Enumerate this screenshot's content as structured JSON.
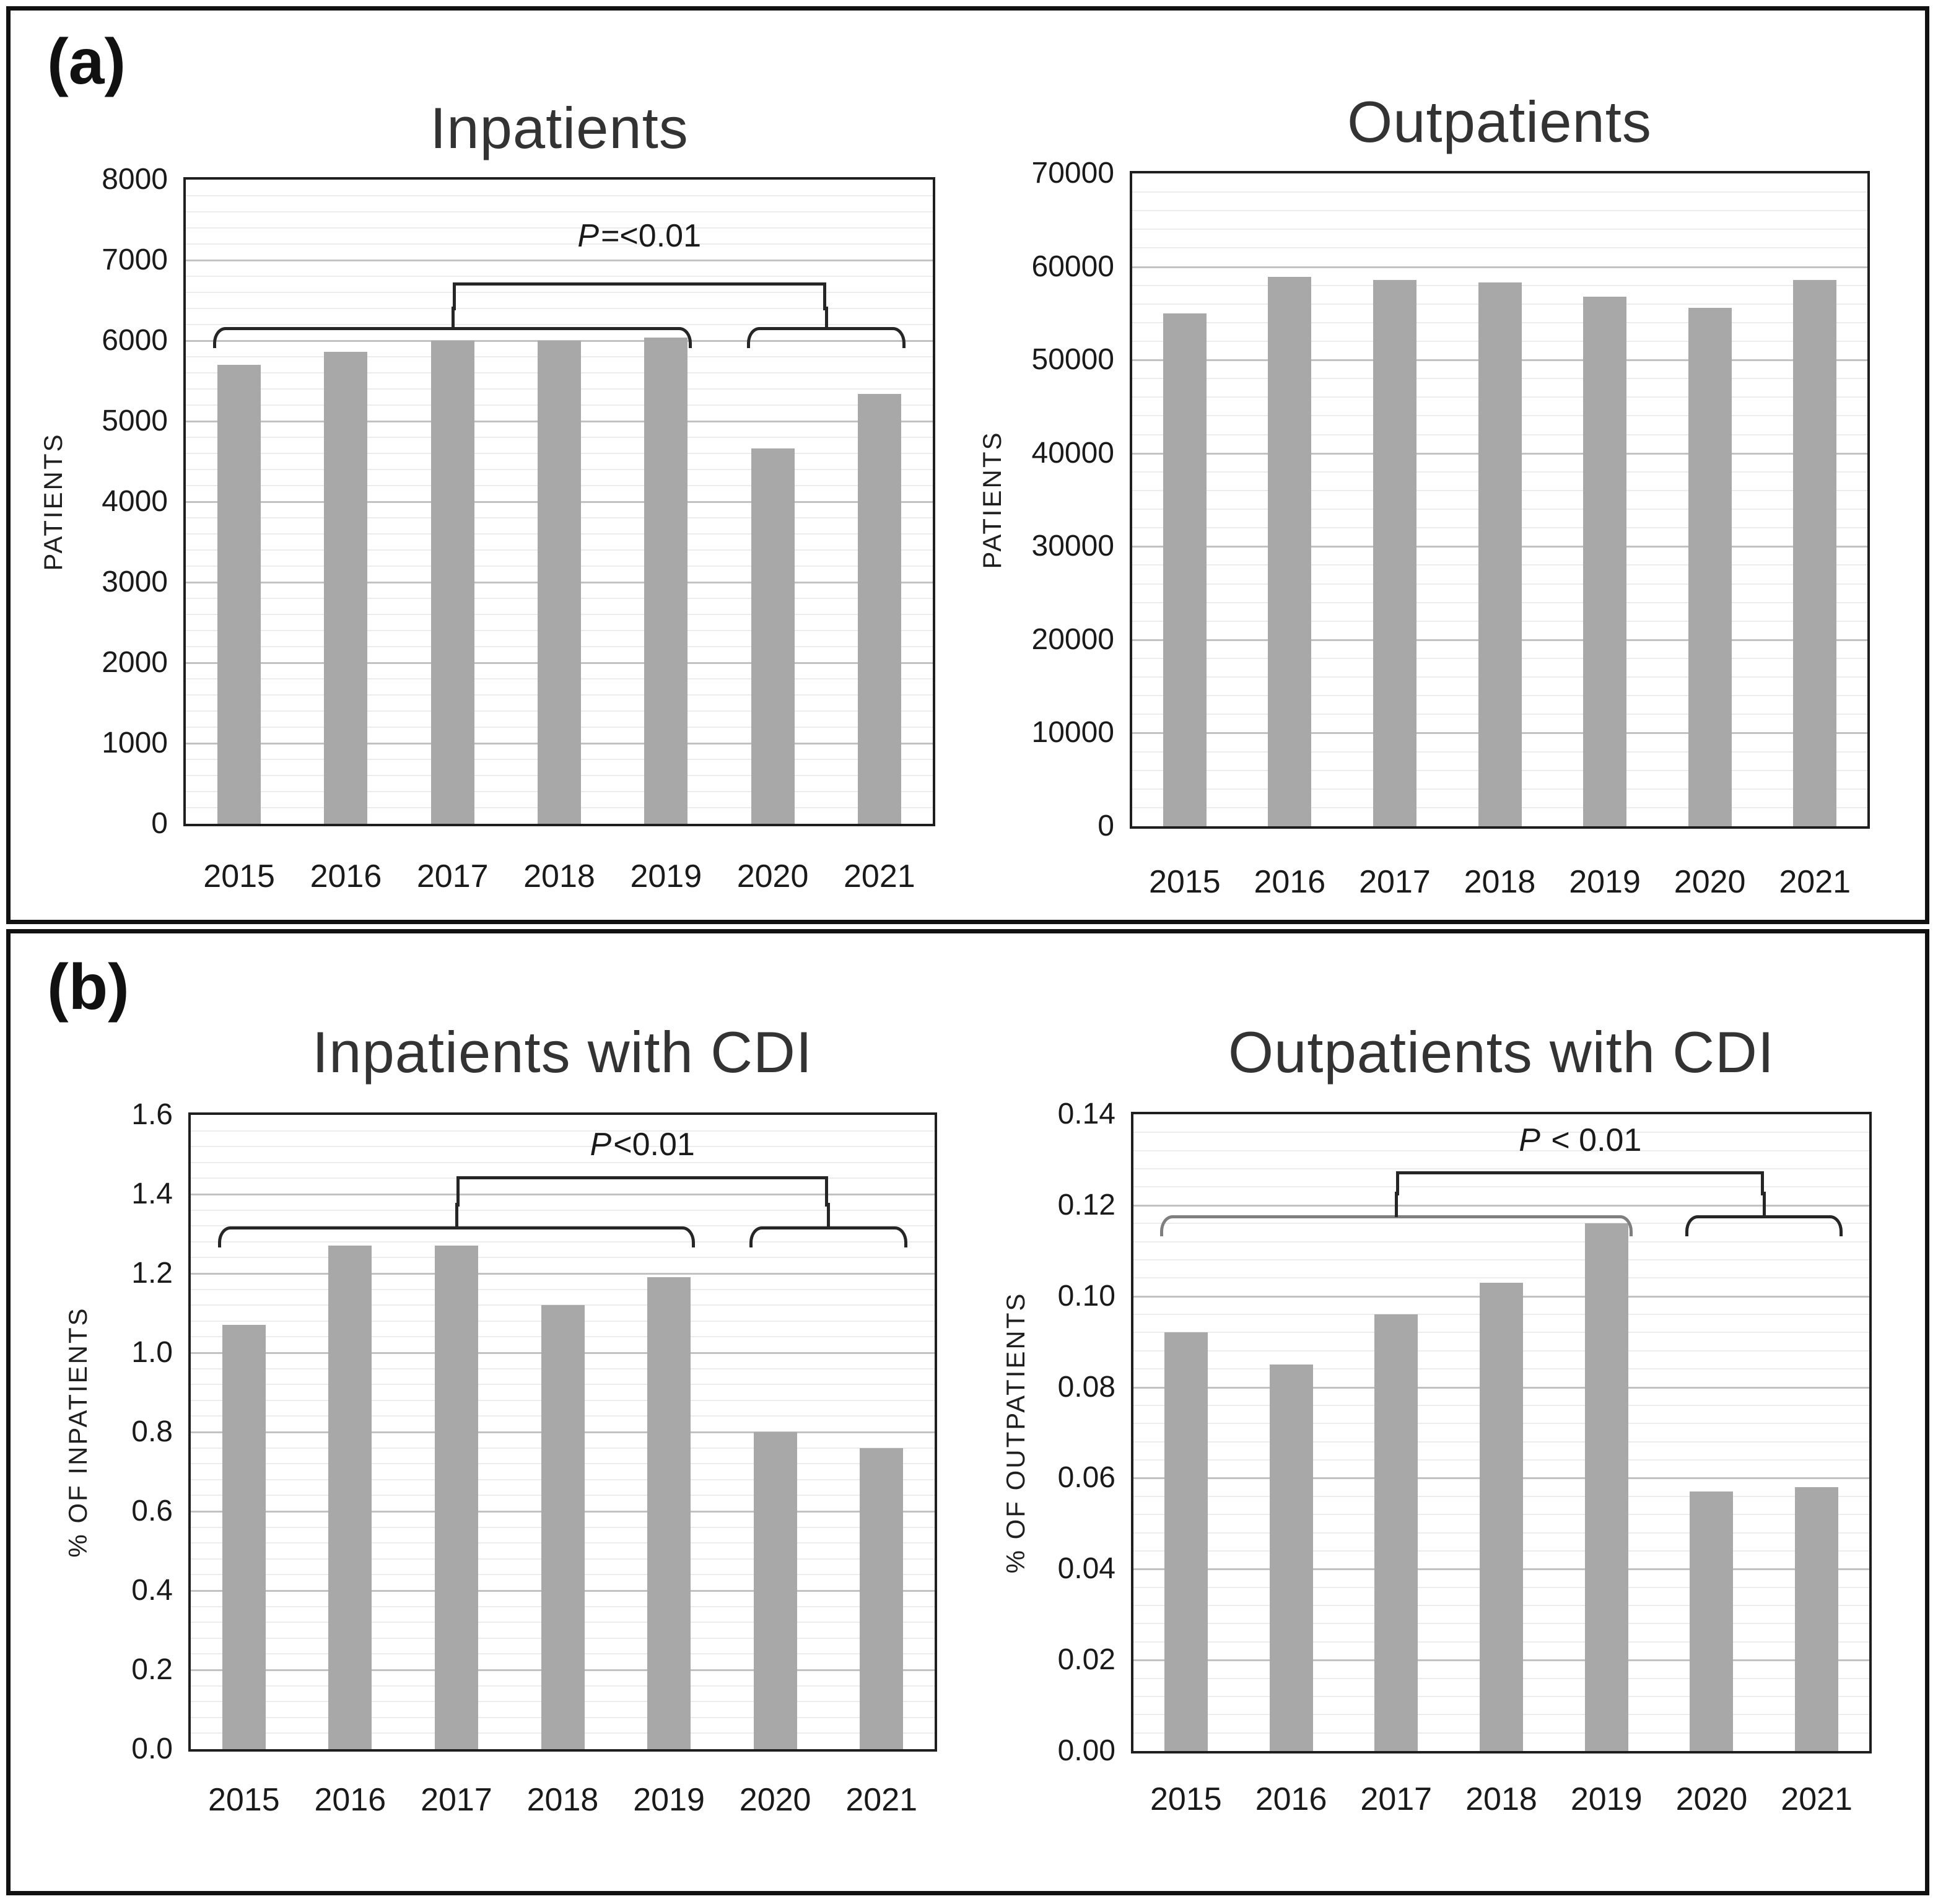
{
  "figure": {
    "panel_a_label": "(a)",
    "panel_b_label": "(b)"
  },
  "colors": {
    "bar": "#a8a8a8",
    "plot_border": "#1f1f1f",
    "gridline_major": "#c2c2c2",
    "gridline_minor": "#ececec",
    "bracket": "#262626",
    "bracket_gray": "#7f7f7f",
    "text": "#1a1a1a"
  },
  "chart_data": [
    {
      "type": "bar",
      "title": "Inpatients",
      "ylabel": "PATIENTS",
      "xlabel": "",
      "categories": [
        "2015",
        "2016",
        "2017",
        "2018",
        "2019",
        "2020",
        "2021"
      ],
      "values": [
        5700,
        5860,
        6000,
        6000,
        6040,
        4660,
        5340
      ],
      "ylim": [
        0,
        8000
      ],
      "ytick_step": 1000,
      "y_minor_per_major": 5,
      "y_decimals": 0,
      "grid": "horizontal",
      "legend": "none",
      "annotation": {
        "p_label": "P=<0.01",
        "group1": [
          0,
          4
        ],
        "group2": [
          5,
          6
        ]
      }
    },
    {
      "type": "bar",
      "title": "Outpatients",
      "ylabel": "PATIENTS",
      "xlabel": "",
      "categories": [
        "2015",
        "2016",
        "2017",
        "2018",
        "2019",
        "2020",
        "2021"
      ],
      "values": [
        55000,
        58900,
        58600,
        58300,
        56800,
        55600,
        58600
      ],
      "ylim": [
        0,
        70000
      ],
      "ytick_step": 10000,
      "y_minor_per_major": 5,
      "y_decimals": 0,
      "grid": "horizontal",
      "legend": "none"
    },
    {
      "type": "bar",
      "title": "Inpatients with CDI",
      "ylabel": "% OF INPATIENTS",
      "xlabel": "",
      "categories": [
        "2015",
        "2016",
        "2017",
        "2018",
        "2019",
        "2020",
        "2021"
      ],
      "values": [
        1.07,
        1.27,
        1.27,
        1.12,
        1.19,
        0.8,
        0.76
      ],
      "ylim": [
        0,
        1.6
      ],
      "ytick_step": 0.2,
      "y_minor_per_major": 5,
      "y_decimals": 1,
      "grid": "horizontal",
      "legend": "none",
      "annotation": {
        "p_label": "P<0.01",
        "group1": [
          0,
          4
        ],
        "group2": [
          5,
          6
        ]
      }
    },
    {
      "type": "bar",
      "title": "Outpatients with CDI",
      "ylabel": "% OF OUTPATIENTS",
      "xlabel": "",
      "categories": [
        "2015",
        "2016",
        "2017",
        "2018",
        "2019",
        "2020",
        "2021"
      ],
      "values": [
        0.092,
        0.085,
        0.096,
        0.103,
        0.116,
        0.057,
        0.058
      ],
      "ylim": [
        0,
        0.14
      ],
      "ytick_step": 0.02,
      "y_minor_per_major": 5,
      "y_decimals": 2,
      "grid": "horizontal",
      "legend": "none",
      "annotation": {
        "p_label": "P < 0.01",
        "group1": [
          0,
          4
        ],
        "group2": [
          5,
          6
        ],
        "group1_color": "#7f7f7f"
      }
    }
  ]
}
